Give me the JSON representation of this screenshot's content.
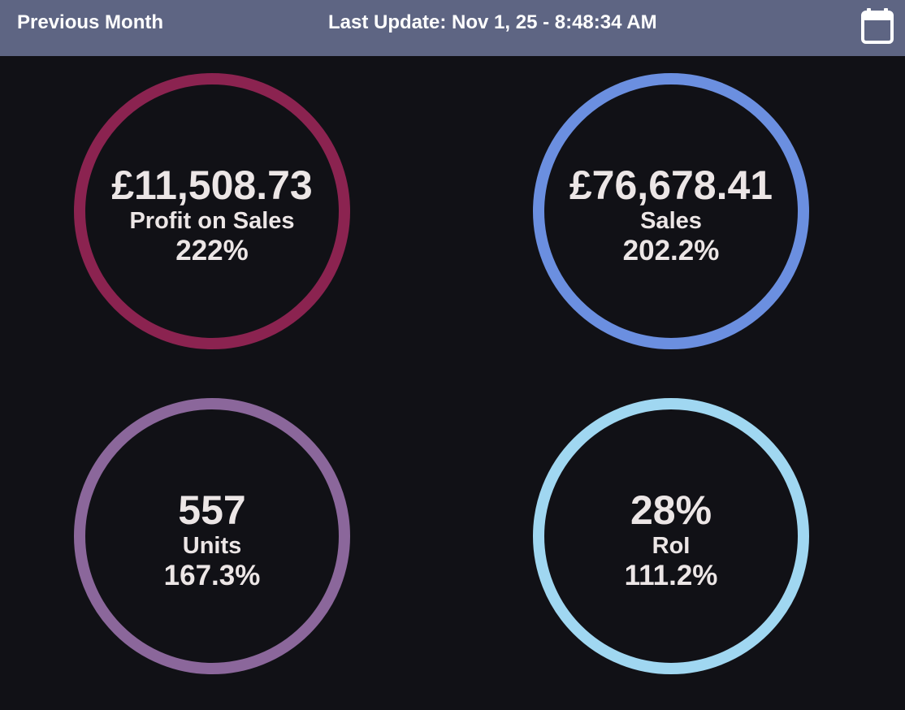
{
  "header": {
    "period_label": "Previous Month",
    "last_update_prefix": "Last Update:",
    "last_update_value": "Nov 1, 25 - 8:48:34 AM",
    "background": "#5e6583",
    "calendar_icon": "calendar-icon"
  },
  "kpis": [
    {
      "value": "£11,508.73",
      "label": "Profit on Sales",
      "change": "222%",
      "color": "#8b2350"
    },
    {
      "value": "£76,678.41",
      "label": "Sales",
      "change": "202.2%",
      "color": "#6b8fe0"
    },
    {
      "value": "557",
      "label": "Units",
      "change": "167.3%",
      "color": "#8b679b"
    },
    {
      "value": "28%",
      "label": "RoI",
      "change": "111.2%",
      "color": "#a0d7f1"
    }
  ]
}
